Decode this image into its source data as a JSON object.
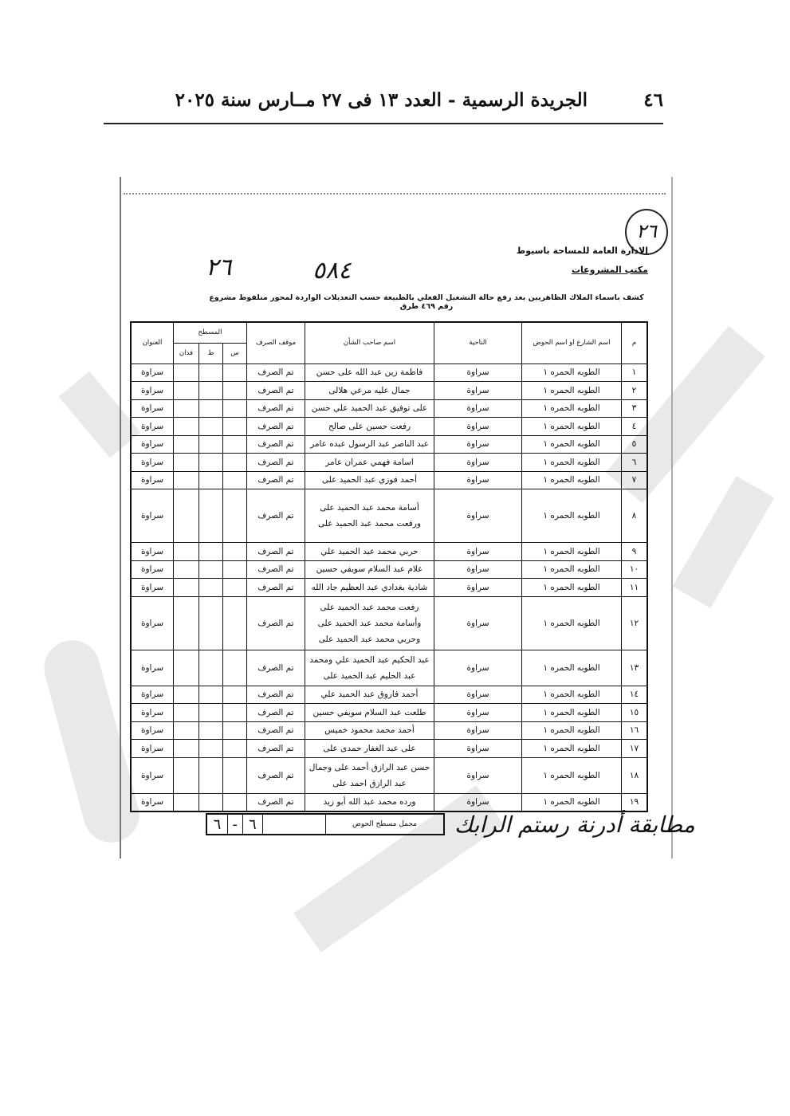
{
  "page_header": {
    "page_number": "٤٦",
    "title": "الجريدة الرسمية - العدد ١٣ فى ٢٧ مــارس سنة ٢٠٢٥"
  },
  "document": {
    "circled_number": "٢٦",
    "org_line1": "الادارة العامة للمساحة باسيوط",
    "org_line2": "مكتب المشروعات",
    "handwritten_a": "٢٦",
    "handwritten_b": "٥٨٤",
    "subject": "كشف باسماء الملاك الظاهريين بعد رفع حالة التشغيل الفعلي بالطبيعة حسب التعديلات الواردة لمحور منلفوط مشروع رقم ٤٦٩ طرق",
    "table": {
      "headers": {
        "num": "م",
        "street": "اسم الشارع او اسم الحوض",
        "district": "الناحية",
        "owner": "اسم صاحب الشأن",
        "status": "موقف الصرف",
        "area": "المسطح",
        "area_s": "س",
        "area_t": "ط",
        "area_f": "فدان",
        "address": "العنوان"
      },
      "rows": [
        {
          "num": "١",
          "street": "الطوبه الحمره ١",
          "district": "سراوة",
          "owner": "فاطمة زين عبد الله على حسن",
          "status": "تم الصرف",
          "address": "سراوة"
        },
        {
          "num": "٢",
          "street": "الطوبه الحمره ١",
          "district": "سراوة",
          "owner": "جمال عليه مرعي هلالى",
          "status": "تم الصرف",
          "address": "سراوة"
        },
        {
          "num": "٣",
          "street": "الطوبه الحمره ١",
          "district": "سراوة",
          "owner": "على توفيق عبد الحميد علي حسن",
          "status": "تم الصرف",
          "address": "سراوة"
        },
        {
          "num": "٤",
          "street": "الطوبه الحمره ١",
          "district": "سراوة",
          "owner": "رفعت حسين على صالح",
          "status": "تم الصرف",
          "address": "سراوة"
        },
        {
          "num": "٥",
          "street": "الطوبه الحمره ١",
          "district": "سراوة",
          "owner": "عبد الناصر عبد الرسول عبده عامر",
          "status": "تم الصرف",
          "address": "سراوة"
        },
        {
          "num": "٦",
          "street": "الطوبه الحمره ١",
          "district": "سراوة",
          "owner": "اسامة فهمي عمران عامر",
          "status": "تم الصرف",
          "address": "سراوة"
        },
        {
          "num": "٧",
          "street": "الطوبه الحمره ١",
          "district": "سراوة",
          "owner": "أحمد فوزي عبد الحميد على",
          "status": "تم الصرف",
          "address": "سراوة"
        },
        {
          "num": "٨",
          "street": "الطوبه الحمره ١",
          "district": "سراوة",
          "owner": "أسامة محمد عبد الحميد على ورفعت محمد عبد الحميد على",
          "status": "تم الصرف",
          "address": "سراوة",
          "lines": 3
        },
        {
          "num": "٩",
          "street": "الطوبه الحمره ١",
          "district": "سراوة",
          "owner": "حربي محمد عبد الحميد علي",
          "status": "تم الصرف",
          "address": "سراوة"
        },
        {
          "num": "١٠",
          "street": "الطوبه الحمره ١",
          "district": "سراوة",
          "owner": "علام عبد السلام سويفي حسين",
          "status": "تم الصرف",
          "address": "سراوة"
        },
        {
          "num": "١١",
          "street": "الطوبه الحمره ١",
          "district": "سراوة",
          "owner": "شادية بغدادي عبد العظيم جاد الله",
          "status": "تم الصرف",
          "address": "سراوة"
        },
        {
          "num": "١٢",
          "street": "الطوبه الحمره ١",
          "district": "سراوة",
          "owner": "رفعت محمد عبد الحميد على وأسامة محمد عبد الحميد على وحربي محمد عبد الحميد على",
          "status": "تم الصرف",
          "address": "سراوة",
          "lines": 3
        },
        {
          "num": "١٣",
          "street": "الطوبه الحمره ١",
          "district": "سراوة",
          "owner": "عبد الحكيم عبد الحميد علي ومحمد عبد الحليم عبد الحميد على",
          "status": "تم الصرف",
          "address": "سراوة",
          "lines": 2
        },
        {
          "num": "١٤",
          "street": "الطوبه الحمره ١",
          "district": "سراوة",
          "owner": "أحمد فاروق عبد الحميد علي",
          "status": "تم الصرف",
          "address": "سراوة"
        },
        {
          "num": "١٥",
          "street": "الطوبه الحمره ١",
          "district": "سراوة",
          "owner": "طلعت عبد السلام سويفي حسين",
          "status": "تم الصرف",
          "address": "سراوة"
        },
        {
          "num": "١٦",
          "street": "الطوبه الحمره ١",
          "district": "سراوة",
          "owner": "أحمد محمد محمود خميس",
          "status": "تم الصرف",
          "address": "سراوة"
        },
        {
          "num": "١٧",
          "street": "الطوبه الحمره ١",
          "district": "سراوة",
          "owner": "على عبد الغفار حمدى على",
          "status": "تم الصرف",
          "address": "سراوة"
        },
        {
          "num": "١٨",
          "street": "الطوبه الحمره ١",
          "district": "سراوة",
          "owner": "حسن عبد الرازق أحمد على وجمال عبد الرازق احمد على",
          "status": "تم الصرف",
          "address": "سراوة",
          "lines": 2
        },
        {
          "num": "١٩",
          "street": "الطوبه الحمره ١",
          "district": "سراوة",
          "owner": "ورده محمد عبد الله أبو زيد",
          "status": "تم الصرف",
          "address": "سراوة"
        }
      ]
    },
    "total": {
      "label": "مجمل مسطح الحوض",
      "s": "٦",
      "t": "-",
      "f": "٦"
    },
    "signature": "مطابقة أدرنة رستم الرابك"
  }
}
